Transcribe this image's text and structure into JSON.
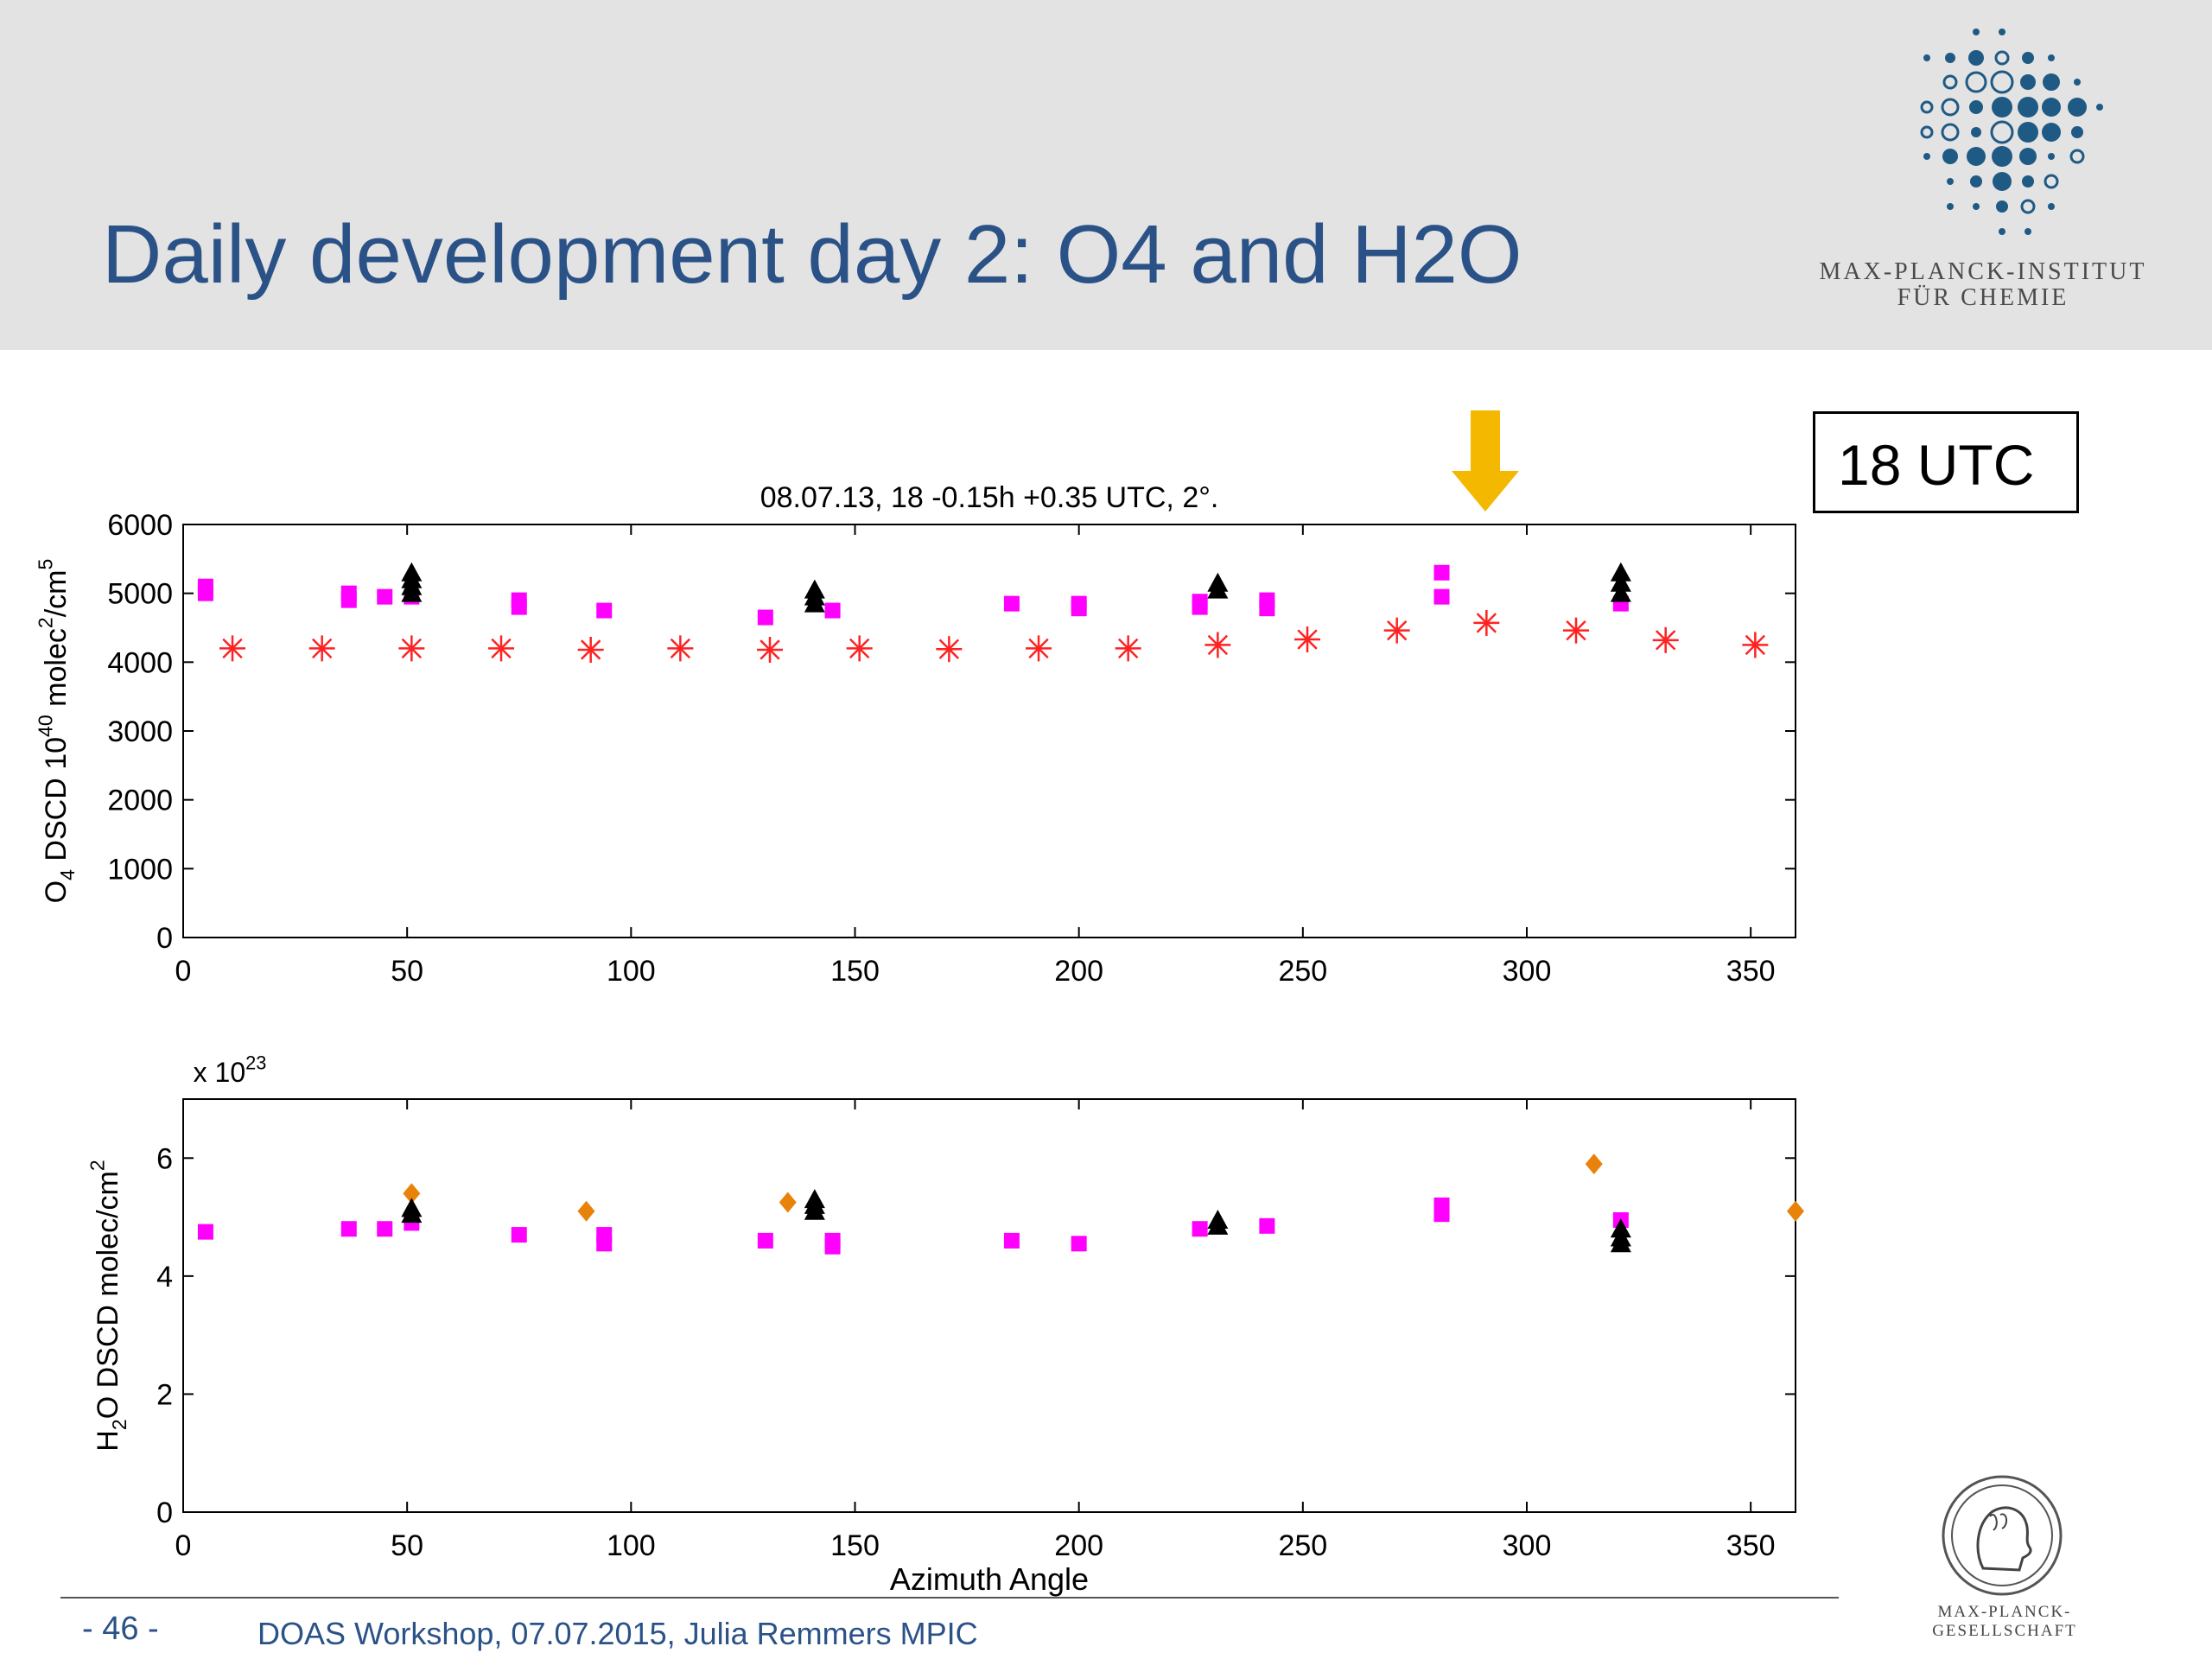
{
  "slide": {
    "title": "Daily development day 2: O4 and H2O",
    "annotation_box": "18 UTC",
    "page_number": "- 46 -",
    "footer": "DOAS Workshop, 07.07.2015, Julia Remmers MPIC",
    "logo_mpi": [
      "MAX-PLANCK-INSTITUT",
      "FÜR CHEMIE"
    ],
    "logo_mpg": "MAX-PLANCK-GESELLSCHAFT",
    "colors": {
      "title": "#2b5287",
      "header_bg": "#e3e3e3",
      "arrow": "#f5b800",
      "magenta": "#ff00ff",
      "red": "#ff2222",
      "orange": "#e8820a",
      "black": "#000000"
    }
  },
  "chart_data": [
    {
      "type": "scatter",
      "title": "08.07.13, 18 -0.15h +0.35 UTC, 2°.",
      "xlabel": "",
      "ylabel": "O4 DSCD 10^40 molec^2/cm^5",
      "xlim": [
        0,
        360
      ],
      "ylim": [
        0,
        6000
      ],
      "xticks": [
        "0",
        "50",
        "100",
        "150",
        "200",
        "250",
        "300",
        "350"
      ],
      "yticks": [
        "0",
        "1000",
        "2000",
        "3000",
        "4000",
        "5000",
        "6000"
      ],
      "series": [
        {
          "marker": "square",
          "color": "#ff00ff",
          "points": [
            [
              5,
              5000
            ],
            [
              5,
              5100
            ],
            [
              37,
              4900
            ],
            [
              37,
              5000
            ],
            [
              45,
              4950
            ],
            [
              51,
              4950
            ],
            [
              75,
              4800
            ],
            [
              75,
              4900
            ],
            [
              94,
              4750
            ],
            [
              130,
              4650
            ],
            [
              145,
              4750
            ],
            [
              185,
              4850
            ],
            [
              200,
              4780
            ],
            [
              200,
              4850
            ],
            [
              227,
              4800
            ],
            [
              227,
              4880
            ],
            [
              242,
              4780
            ],
            [
              242,
              4900
            ],
            [
              281,
              4950
            ],
            [
              281,
              5300
            ],
            [
              321,
              4850
            ]
          ]
        },
        {
          "marker": "asterisk",
          "color": "#ff2222",
          "points": [
            [
              11,
              4200
            ],
            [
              31,
              4200
            ],
            [
              51,
              4200
            ],
            [
              71,
              4200
            ],
            [
              91,
              4180
            ],
            [
              111,
              4200
            ],
            [
              131,
              4180
            ],
            [
              151,
              4200
            ],
            [
              171,
              4190
            ],
            [
              191,
              4200
            ],
            [
              211,
              4200
            ],
            [
              231,
              4250
            ],
            [
              251,
              4330
            ],
            [
              271,
              4460
            ],
            [
              291,
              4570
            ],
            [
              311,
              4460
            ],
            [
              331,
              4320
            ],
            [
              351,
              4250
            ]
          ]
        },
        {
          "marker": "triangle",
          "color": "#000000",
          "points": [
            [
              51,
              5000
            ],
            [
              51,
              5100
            ],
            [
              51,
              5200
            ],
            [
              51,
              5300
            ],
            [
              141,
              4850
            ],
            [
              141,
              4950
            ],
            [
              141,
              5050
            ],
            [
              231,
              5050
            ],
            [
              231,
              5150
            ],
            [
              321,
              5000
            ],
            [
              321,
              5150
            ],
            [
              321,
              5300
            ]
          ]
        }
      ]
    },
    {
      "type": "scatter",
      "title": "",
      "multiplier": "x 10^23",
      "xlabel": "Azimuth Angle",
      "ylabel": "H2O DSCD molec/cm^2",
      "xlim": [
        0,
        360
      ],
      "ylim": [
        0,
        7
      ],
      "xticks": [
        "0",
        "50",
        "100",
        "150",
        "200",
        "250",
        "300",
        "350"
      ],
      "yticks": [
        "0",
        "2",
        "4",
        "6"
      ],
      "series": [
        {
          "marker": "square",
          "color": "#ff00ff",
          "points": [
            [
              5,
              4.75
            ],
            [
              37,
              4.8
            ],
            [
              45,
              4.8
            ],
            [
              51,
              4.9
            ],
            [
              75,
              4.7
            ],
            [
              94,
              4.55
            ],
            [
              94,
              4.7
            ],
            [
              130,
              4.6
            ],
            [
              145,
              4.5
            ],
            [
              145,
              4.6
            ],
            [
              185,
              4.6
            ],
            [
              200,
              4.55
            ],
            [
              227,
              4.8
            ],
            [
              242,
              4.85
            ],
            [
              281,
              5.05
            ],
            [
              281,
              5.2
            ],
            [
              321,
              4.95
            ]
          ]
        },
        {
          "marker": "diamond",
          "color": "#e8820a",
          "points": [
            [
              51,
              5.4
            ],
            [
              90,
              5.1
            ],
            [
              135,
              5.25
            ],
            [
              315,
              5.9
            ],
            [
              360,
              5.1
            ]
          ]
        },
        {
          "marker": "triangle",
          "color": "#000000",
          "points": [
            [
              51,
              5.05
            ],
            [
              51,
              5.15
            ],
            [
              141,
              5.1
            ],
            [
              141,
              5.2
            ],
            [
              141,
              5.3
            ],
            [
              231,
              4.85
            ],
            [
              231,
              4.95
            ],
            [
              321,
              4.55
            ],
            [
              321,
              4.65
            ],
            [
              321,
              4.8
            ]
          ]
        }
      ]
    }
  ]
}
